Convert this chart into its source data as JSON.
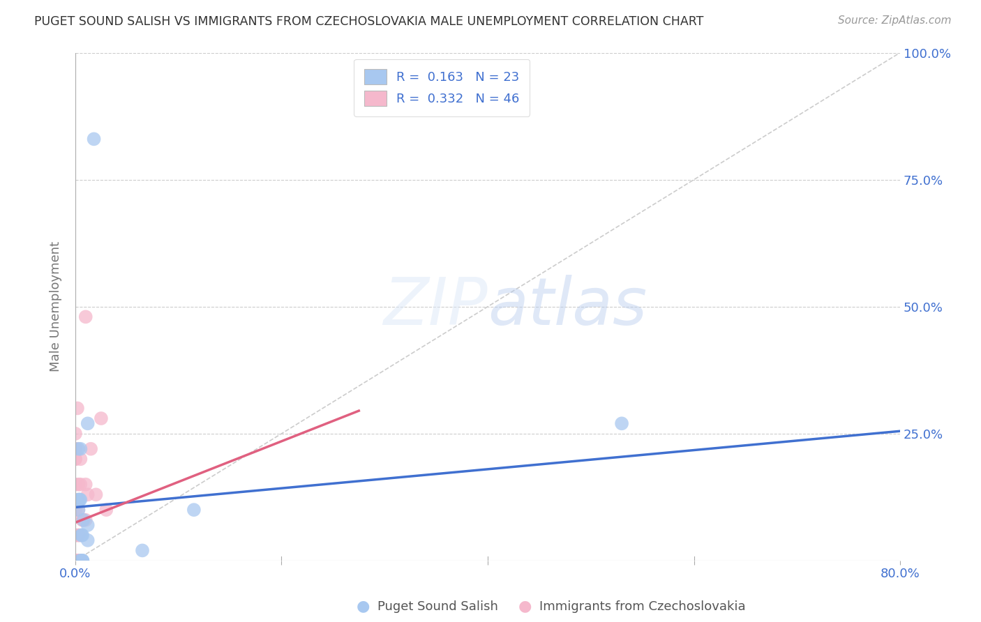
{
  "title": "PUGET SOUND SALISH VS IMMIGRANTS FROM CZECHOSLOVAKIA MALE UNEMPLOYMENT CORRELATION CHART",
  "source": "Source: ZipAtlas.com",
  "xlabel_blue": "Puget Sound Salish",
  "xlabel_pink": "Immigrants from Czechoslovakia",
  "ylabel": "Male Unemployment",
  "xlim": [
    0.0,
    0.8
  ],
  "ylim": [
    0.0,
    1.0
  ],
  "blue_R": "0.163",
  "blue_N": "23",
  "pink_R": "0.332",
  "pink_N": "46",
  "blue_color": "#a8c8f0",
  "pink_color": "#f5b8cc",
  "blue_line_color": "#4070d0",
  "pink_line_color": "#e06080",
  "watermark_color": "#dce8f8",
  "background_color": "#ffffff",
  "blue_line_x": [
    0.0,
    0.8
  ],
  "blue_line_y": [
    0.105,
    0.255
  ],
  "pink_line_x": [
    0.0,
    0.275
  ],
  "pink_line_y": [
    0.075,
    0.295
  ],
  "diag_line_x": [
    0.0,
    0.8
  ],
  "diag_line_y": [
    0.0,
    1.0
  ],
  "blue_points_x": [
    0.018,
    0.012,
    0.007,
    0.007,
    0.007,
    0.007,
    0.006,
    0.006,
    0.005,
    0.005,
    0.005,
    0.004,
    0.004,
    0.003,
    0.003,
    0.003,
    0.008,
    0.005,
    0.012,
    0.012,
    0.065,
    0.53,
    0.115
  ],
  "blue_points_y": [
    0.83,
    0.27,
    0.0,
    0.0,
    0.0,
    0.05,
    0.05,
    0.05,
    0.0,
    0.0,
    0.12,
    0.12,
    0.12,
    0.12,
    0.1,
    0.22,
    0.08,
    0.22,
    0.07,
    0.04,
    0.02,
    0.27,
    0.1
  ],
  "pink_points_x": [
    0.0,
    0.0,
    0.0,
    0.0,
    0.0,
    0.0,
    0.0,
    0.0,
    0.0,
    0.0,
    0.0,
    0.0,
    0.0,
    0.0,
    0.0,
    0.0,
    0.003,
    0.003,
    0.003,
    0.003,
    0.003,
    0.003,
    0.005,
    0.005,
    0.005,
    0.005,
    0.005,
    0.005,
    0.007,
    0.007,
    0.01,
    0.01,
    0.01,
    0.012,
    0.015,
    0.02,
    0.025,
    0.03,
    0.002,
    0.002,
    0.002,
    0.002,
    0.001,
    0.001,
    0.001,
    0.001
  ],
  "pink_points_y": [
    0.0,
    0.0,
    0.0,
    0.0,
    0.0,
    0.0,
    0.05,
    0.05,
    0.05,
    0.1,
    0.1,
    0.15,
    0.2,
    0.2,
    0.25,
    0.22,
    0.0,
    0.0,
    0.05,
    0.05,
    0.1,
    0.15,
    0.0,
    0.0,
    0.0,
    0.05,
    0.15,
    0.2,
    0.08,
    0.08,
    0.08,
    0.15,
    0.48,
    0.13,
    0.22,
    0.13,
    0.28,
    0.1,
    0.3,
    0.22,
    0.12,
    0.0,
    0.0,
    0.0,
    0.0,
    0.0
  ]
}
